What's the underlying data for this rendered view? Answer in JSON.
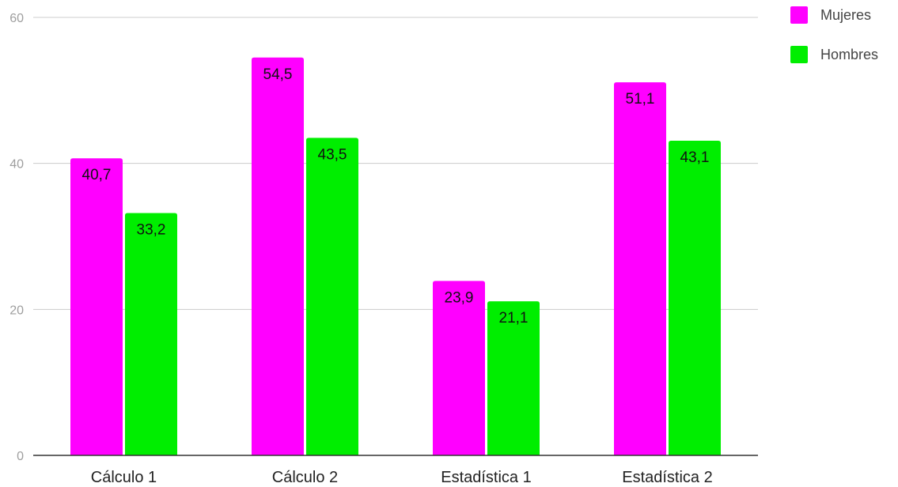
{
  "chart_data": {
    "type": "bar",
    "title": "",
    "xlabel": "",
    "ylabel": "",
    "categories": [
      "Cálculo 1",
      "Cálculo 2",
      "Estadística 1",
      "Estadística 2"
    ],
    "series": [
      {
        "name": "Mujeres",
        "color": "#ff00ff",
        "values": [
          40.7,
          54.5,
          23.9,
          51.1
        ],
        "labels": [
          "40,7",
          "54,5",
          "23,9",
          "51,1"
        ]
      },
      {
        "name": "Hombres",
        "color": "#00ee00",
        "values": [
          33.2,
          43.5,
          21.1,
          43.1
        ],
        "labels": [
          "33,2",
          "43,5",
          "21,1",
          "43,1"
        ]
      }
    ],
    "ylim": [
      0,
      60
    ],
    "yticks": [
      {
        "value": 0,
        "label": "0"
      },
      {
        "value": 20,
        "label": "20"
      },
      {
        "value": 40,
        "label": "40"
      },
      {
        "value": 60,
        "label": "60"
      }
    ],
    "grid": true,
    "legend_position": "top-right"
  }
}
